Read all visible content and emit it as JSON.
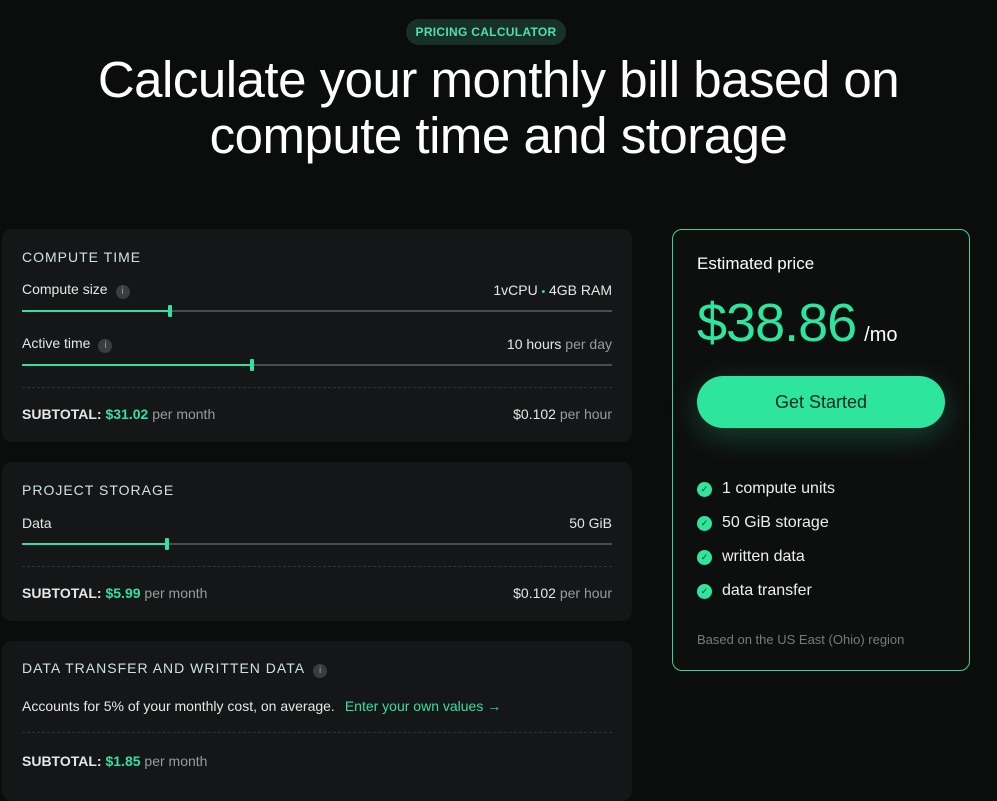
{
  "badge": "PRICING CALCULATOR",
  "title_line1": "Calculate your monthly bill based on",
  "title_line2": "compute time and storage",
  "compute": {
    "heading": "COMPUTE TIME",
    "size_label": "Compute size",
    "size_value_cpu": "1vCPU",
    "size_sep": "•",
    "size_value_ram": "4GB RAM",
    "size_fraction": 0.25,
    "active_label": "Active time",
    "active_value": "10 hours",
    "active_unit": "per day",
    "active_fraction": 0.39,
    "subtotal_label": "SUBTOTAL:",
    "subtotal": "$31.02",
    "subtotal_unit": "per month",
    "rate": "$0.102",
    "rate_unit": "per hour"
  },
  "storage": {
    "heading": "PROJECT STORAGE",
    "data_label": "Data",
    "data_value": "50 GiB",
    "data_fraction": 0.245,
    "subtotal_label": "SUBTOTAL:",
    "subtotal": "$5.99",
    "subtotal_unit": "per month",
    "rate": "$0.102",
    "rate_unit": "per hour"
  },
  "transfer": {
    "heading": "DATA TRANSFER AND WRITTEN DATA",
    "desc": "Accounts for 5% of your monthly cost, on average.",
    "link": "Enter your own values →",
    "subtotal_label": "SUBTOTAL:",
    "subtotal": "$1.85",
    "subtotal_unit": "per month"
  },
  "estimate": {
    "heading": "Estimated price",
    "amount": "$38.86",
    "unit": "/mo",
    "cta": "Get Started",
    "features": [
      "1 compute units",
      "50 GiB storage",
      "written data",
      "data transfer"
    ],
    "footnote": "Based on the US East (Ohio) region"
  },
  "colors": {
    "accent": "#2ee59d",
    "background": "#0b0c0c",
    "card": "#141617"
  }
}
